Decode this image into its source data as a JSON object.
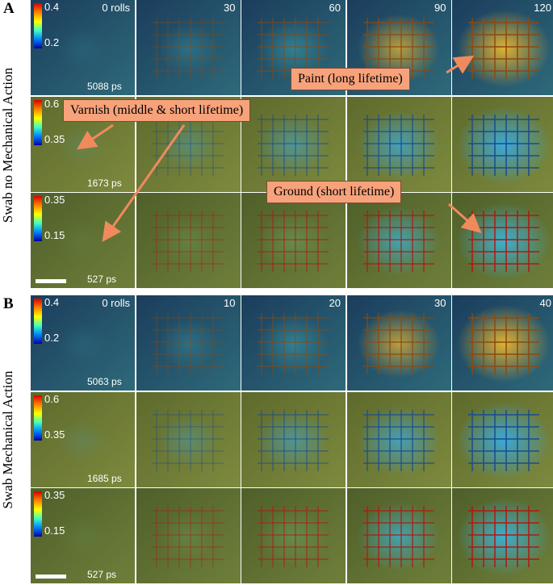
{
  "panels": [
    {
      "letter": "A",
      "side_label": "Swab no Mechanical Action",
      "columns": [
        "0 rolls",
        "30",
        "60",
        "90",
        "120"
      ],
      "rows": [
        {
          "cbar_max": "0.4",
          "cbar_min": "0.2",
          "lifetime": "5088 ps"
        },
        {
          "cbar_max": "0.6",
          "cbar_min": "0.35",
          "lifetime": "1673 ps"
        },
        {
          "cbar_max": "0.35",
          "cbar_min": "0.15",
          "lifetime": "527 ps"
        }
      ]
    },
    {
      "letter": "B",
      "side_label": "Swab Mechanical Action",
      "columns": [
        "0 rolls",
        "10",
        "20",
        "30",
        "40"
      ],
      "rows": [
        {
          "cbar_max": "0.4",
          "cbar_min": "0.2",
          "lifetime": "5063 ps"
        },
        {
          "cbar_max": "0.6",
          "cbar_min": "0.35",
          "lifetime": "1685 ps"
        },
        {
          "cbar_max": "0.35",
          "cbar_min": "0.15",
          "lifetime": "527 ps"
        }
      ]
    }
  ],
  "callouts": {
    "paint": "Paint (long lifetime)",
    "varnish": "Varnish (middle & short lifetime)",
    "ground": "Ground (short lifetime)"
  },
  "colors": {
    "callout_fill": "#f7a27b",
    "arrow": "#f08a5d"
  }
}
